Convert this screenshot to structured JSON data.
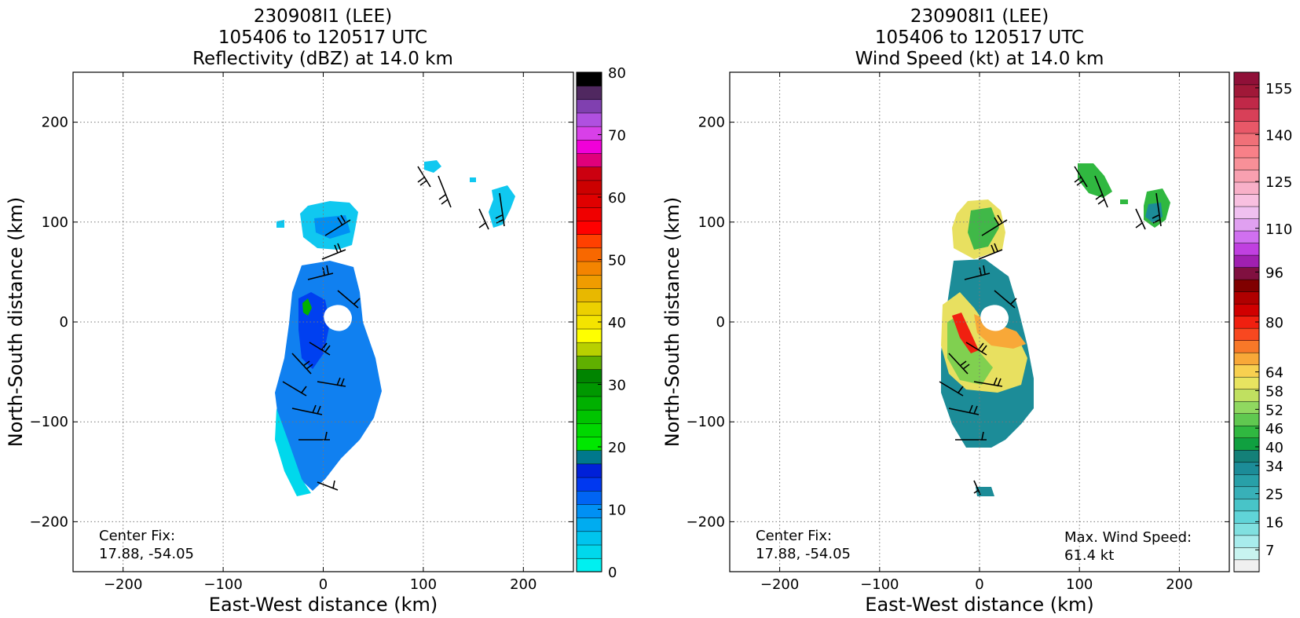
{
  "colors": {
    "dbz_scale": [
      "#00f0f0",
      "#00d8ec",
      "#00c4ee",
      "#00acf0",
      "#0090f4",
      "#0064f4",
      "#0038f0",
      "#0020d8",
      "#00788c",
      "#00e800",
      "#00d800",
      "#00c400",
      "#00b000",
      "#009800",
      "#008400",
      "#60b000",
      "#b8d000",
      "#ffff00",
      "#f4e400",
      "#ecd000",
      "#e8b800",
      "#f09c00",
      "#f48400",
      "#f86800",
      "#ff4000",
      "#ff0000",
      "#f00000",
      "#e00000",
      "#cc0000",
      "#cc0010",
      "#e0007a",
      "#f000d8",
      "#d840e8",
      "#b050e0",
      "#8040b0",
      "#502860",
      "#000000"
    ],
    "wind_scale": [
      "#f0f0f0",
      "#c8f4f0",
      "#a8ecec",
      "#80e0e0",
      "#60d4d8",
      "#48c4c8",
      "#38b0b8",
      "#28a0a8",
      "#1c8c98",
      "#148078",
      "#10a040",
      "#30b840",
      "#60c850",
      "#90d860",
      "#c0e060",
      "#e8e460",
      "#f8d050",
      "#f8a838",
      "#f87828",
      "#f84820",
      "#f02010",
      "#d00000",
      "#b00000",
      "#800000",
      "#801040",
      "#a020b0",
      "#c040e0",
      "#d070f0",
      "#e0a0f0",
      "#f0c0f0",
      "#f8c0e0",
      "#f8b0c8",
      "#f8a0b0",
      "#f89098",
      "#f88088",
      "#f07078",
      "#e85868",
      "#d84058",
      "#c02848",
      "#a01838",
      "#901038"
    ],
    "barb": "#000000",
    "grid": "#777777"
  },
  "chart_data": [
    {
      "type": "heatmap",
      "title": [
        "230908I1 (LEE)",
        "105406 to 120517 UTC",
        "Reflectivity (dBZ) at 14.0 km"
      ],
      "xlabel": "East-West distance (km)",
      "ylabel": "North-South distance (km)",
      "xlim": [
        -250,
        250
      ],
      "ylim": [
        -250,
        250
      ],
      "xticks": [
        -200,
        -100,
        0,
        100,
        200
      ],
      "yticks": [
        -200,
        -100,
        0,
        100,
        200
      ],
      "xtick_labels": [
        "−200",
        "−100",
        "0",
        "100",
        "200"
      ],
      "ytick_labels": [
        "−200",
        "−100",
        "0",
        "100",
        "200"
      ],
      "grid": true,
      "colorbar": {
        "min": 0,
        "max": 80,
        "ticks": [
          0,
          10,
          20,
          30,
          40,
          50,
          60,
          70,
          80
        ]
      },
      "annotations": {
        "center_fix_label": "Center Fix:",
        "center_fix_value": "17.88, -54.05"
      }
    },
    {
      "type": "heatmap",
      "title": [
        "230908I1 (LEE)",
        "105406 to 120517 UTC",
        "Wind Speed (kt) at 14.0 km"
      ],
      "xlabel": "East-West distance (km)",
      "ylabel": "North-South distance (km)",
      "xlim": [
        -250,
        250
      ],
      "ylim": [
        -250,
        250
      ],
      "xticks": [
        -200,
        -100,
        0,
        100,
        200
      ],
      "yticks": [
        -200,
        -100,
        0,
        100,
        200
      ],
      "xtick_labels": [
        "−200",
        "−100",
        "0",
        "100",
        "200"
      ],
      "ytick_labels": [
        "−200",
        "−100",
        "0",
        "100",
        "200"
      ],
      "grid": true,
      "colorbar": {
        "min": 0,
        "max": 160,
        "ticks": [
          7,
          16,
          25,
          34,
          40,
          46,
          52,
          58,
          64,
          80,
          96,
          110,
          125,
          140,
          155
        ]
      },
      "annotations": {
        "center_fix_label": "Center Fix:",
        "center_fix_value": "17.88, -54.05",
        "max_wind_label": "Max. Wind Speed:",
        "max_wind_value": "61.4 kt"
      }
    }
  ]
}
